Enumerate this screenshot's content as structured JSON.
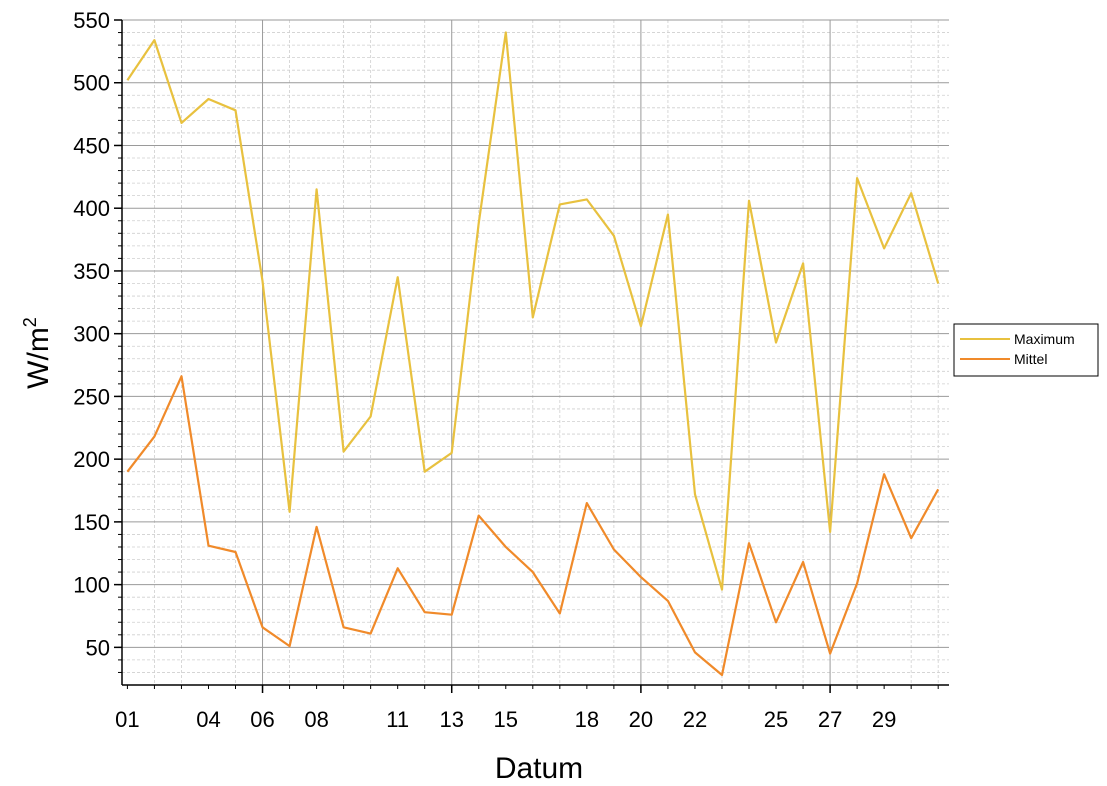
{
  "chart_data": {
    "type": "line",
    "xlabel": "Datum",
    "ylabel": "W/m",
    "ylabel_sup": "2",
    "x": [
      1,
      2,
      3,
      4,
      5,
      6,
      7,
      8,
      9,
      10,
      11,
      12,
      13,
      14,
      15,
      16,
      17,
      18,
      19,
      20,
      21,
      22,
      23,
      24,
      25,
      26,
      27,
      28,
      29,
      30,
      31
    ],
    "x_tick_values": [
      1,
      4,
      6,
      8,
      11,
      13,
      15,
      18,
      20,
      22,
      25,
      27,
      29
    ],
    "x_tick_labels": [
      "01",
      "04",
      "06",
      "08",
      "11",
      "13",
      "15",
      "18",
      "20",
      "22",
      "25",
      "27",
      "29"
    ],
    "xlim": [
      0.8,
      31.4
    ],
    "ylim": [
      20,
      550
    ],
    "y_ticks": [
      50,
      100,
      150,
      200,
      250,
      300,
      350,
      400,
      450,
      500,
      550
    ],
    "y_tick_labels": [
      "50",
      "100",
      "150",
      "200",
      "250",
      "300",
      "350",
      "400",
      "450",
      "500",
      "550"
    ],
    "grid": true,
    "legend_position": "right",
    "series": [
      {
        "name": "Maximum",
        "color": "#e8c13f",
        "values": [
          502,
          534,
          468,
          487,
          478,
          342,
          158,
          415,
          206,
          234,
          345,
          190,
          205,
          388,
          540,
          313,
          403,
          407,
          378,
          306,
          395,
          172,
          96,
          406,
          293,
          356,
          142,
          424,
          368,
          412,
          340
        ]
      },
      {
        "name": "Mittel",
        "color": "#f08a2a",
        "values": [
          190,
          218,
          266,
          131,
          126,
          66,
          51,
          146,
          66,
          61,
          113,
          78,
          76,
          155,
          130,
          110,
          77,
          165,
          128,
          106,
          87,
          46,
          28,
          133,
          70,
          118,
          45,
          101,
          188,
          137,
          176
        ]
      }
    ]
  }
}
